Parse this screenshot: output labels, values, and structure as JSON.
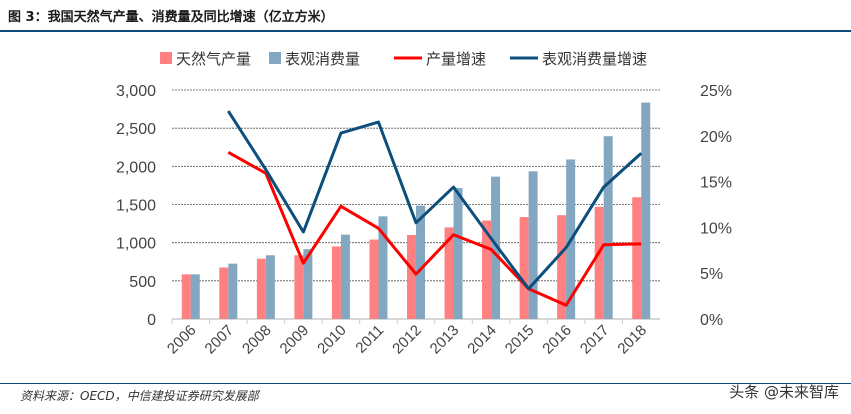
{
  "title": "图 3：我国天然气产量、消费量及同比增速（亿立方米）",
  "source": "资料来源：OECD，中信建投证券研究发展部",
  "watermark": "头条 @未来智库",
  "chart_data": {
    "type": "bar+line",
    "categories": [
      "2006",
      "2007",
      "2008",
      "2009",
      "2010",
      "2011",
      "2012",
      "2013",
      "2014",
      "2015",
      "2016",
      "2017",
      "2018"
    ],
    "left_axis": {
      "ylim": [
        0,
        3000
      ],
      "ticks": [
        "0",
        "500",
        "1,000",
        "1,500",
        "2,000",
        "2,500",
        "3,000"
      ]
    },
    "right_axis": {
      "ylim": [
        0,
        25
      ],
      "ticks": [
        "0%",
        "5%",
        "10%",
        "15%",
        "20%",
        "25%"
      ]
    },
    "grid": true,
    "legend": "top",
    "series": [
      {
        "name": "天然气产量",
        "type": "bar",
        "axis": "left",
        "color": "#ff8080",
        "values": [
          585,
          675,
          790,
          835,
          950,
          1040,
          1100,
          1200,
          1290,
          1335,
          1360,
          1470,
          1595
        ]
      },
      {
        "name": "表观消费量",
        "type": "bar",
        "axis": "left",
        "color": "#84a7c1",
        "values": [
          585,
          725,
          835,
          915,
          1105,
          1345,
          1485,
          1715,
          1865,
          1935,
          2090,
          2395,
          2835
        ]
      },
      {
        "name": "产量增速",
        "type": "line",
        "axis": "right",
        "color": "#ff0000",
        "values": [
          null,
          18.2,
          15.9,
          6.1,
          12.3,
          9.9,
          4.9,
          9.2,
          7.6,
          3.3,
          1.5,
          8.1,
          8.2
        ]
      },
      {
        "name": "表观消费量增速",
        "type": "line",
        "axis": "right",
        "color": "#0d4f7c",
        "values": [
          null,
          22.7,
          16.3,
          9.5,
          20.3,
          21.5,
          10.5,
          14.4,
          8.8,
          3.3,
          7.8,
          14.4,
          18.1
        ]
      }
    ]
  }
}
